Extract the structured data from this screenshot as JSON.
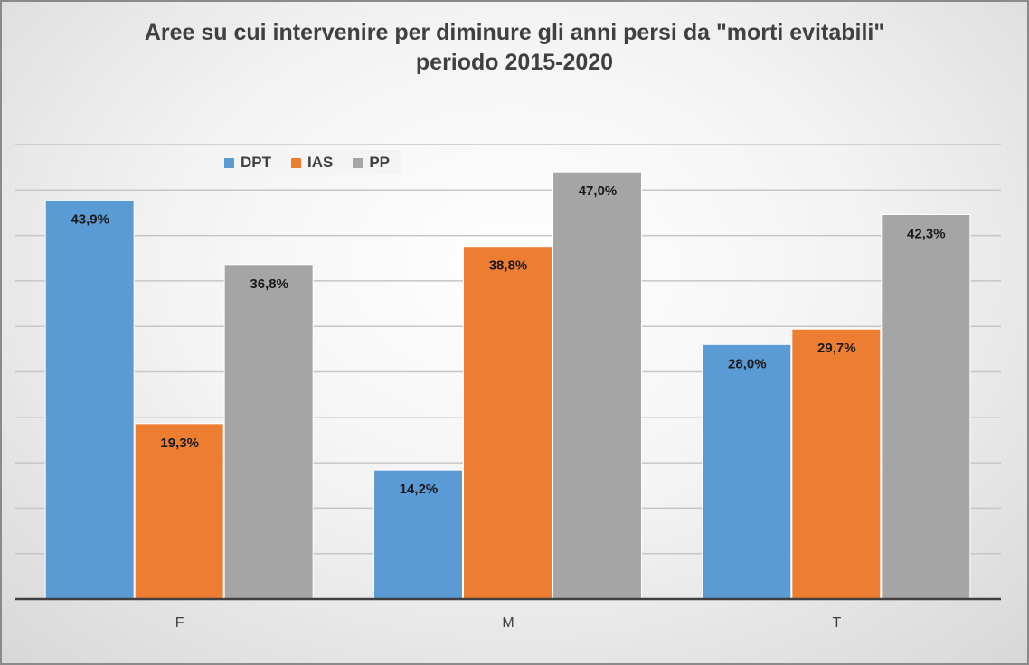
{
  "chart_data": {
    "type": "bar",
    "title": "Aree su cui intervenire per diminure gli anni persi da \"morti evitabili\"",
    "subtitle": "periodo 2015-2020",
    "categories": [
      "F",
      "M",
      "T"
    ],
    "series": [
      {
        "name": "DPT",
        "color": "#5b9bd5",
        "values": [
          43.9,
          14.2,
          28.0
        ],
        "labels": [
          "43,9%",
          "14,2%",
          "28,0%"
        ]
      },
      {
        "name": "IAS",
        "color": "#ed7d31",
        "values": [
          19.3,
          38.8,
          29.7
        ],
        "labels": [
          "19,3%",
          "38,8%",
          "29,7%"
        ]
      },
      {
        "name": "PP",
        "color": "#a5a5a5",
        "values": [
          36.8,
          47.0,
          42.3
        ],
        "labels": [
          "36,8%",
          "47,0%",
          "42,3%"
        ]
      }
    ],
    "ylim": [
      0,
      50
    ],
    "xlabel": "",
    "ylabel": "",
    "y_tick_labels_visible": false,
    "grid": true,
    "legend_position": "top-left"
  }
}
